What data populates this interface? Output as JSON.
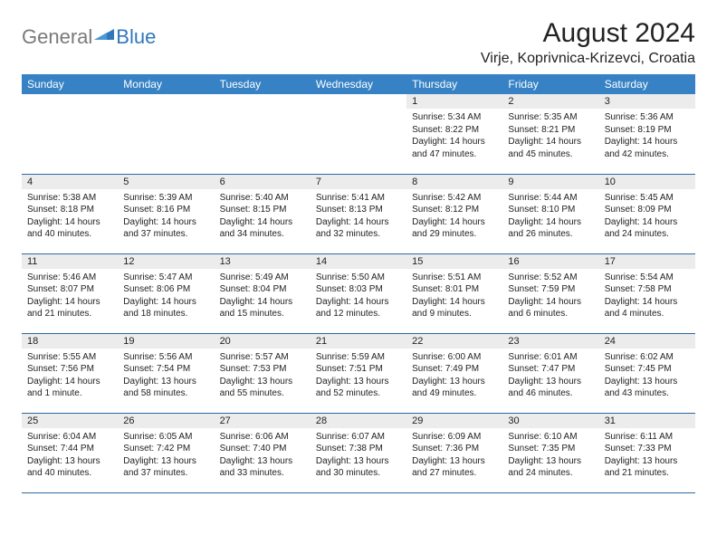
{
  "logo": {
    "general": "General",
    "blue": "Blue",
    "mark_color": "#2f78bd"
  },
  "title": "August 2024",
  "location": "Virje, Koprivnica-Krizevci, Croatia",
  "colors": {
    "header_bg": "#3682c4",
    "header_text": "#ffffff",
    "daynum_bg": "#ececec",
    "divider": "#2b6aa3",
    "text": "#222222"
  },
  "day_headers": [
    "Sunday",
    "Monday",
    "Tuesday",
    "Wednesday",
    "Thursday",
    "Friday",
    "Saturday"
  ],
  "weeks": [
    [
      {
        "n": "",
        "sunrise": "",
        "sunset": "",
        "daylight": ""
      },
      {
        "n": "",
        "sunrise": "",
        "sunset": "",
        "daylight": ""
      },
      {
        "n": "",
        "sunrise": "",
        "sunset": "",
        "daylight": ""
      },
      {
        "n": "",
        "sunrise": "",
        "sunset": "",
        "daylight": ""
      },
      {
        "n": "1",
        "sunrise": "Sunrise: 5:34 AM",
        "sunset": "Sunset: 8:22 PM",
        "daylight": "Daylight: 14 hours and 47 minutes."
      },
      {
        "n": "2",
        "sunrise": "Sunrise: 5:35 AM",
        "sunset": "Sunset: 8:21 PM",
        "daylight": "Daylight: 14 hours and 45 minutes."
      },
      {
        "n": "3",
        "sunrise": "Sunrise: 5:36 AM",
        "sunset": "Sunset: 8:19 PM",
        "daylight": "Daylight: 14 hours and 42 minutes."
      }
    ],
    [
      {
        "n": "4",
        "sunrise": "Sunrise: 5:38 AM",
        "sunset": "Sunset: 8:18 PM",
        "daylight": "Daylight: 14 hours and 40 minutes."
      },
      {
        "n": "5",
        "sunrise": "Sunrise: 5:39 AM",
        "sunset": "Sunset: 8:16 PM",
        "daylight": "Daylight: 14 hours and 37 minutes."
      },
      {
        "n": "6",
        "sunrise": "Sunrise: 5:40 AM",
        "sunset": "Sunset: 8:15 PM",
        "daylight": "Daylight: 14 hours and 34 minutes."
      },
      {
        "n": "7",
        "sunrise": "Sunrise: 5:41 AM",
        "sunset": "Sunset: 8:13 PM",
        "daylight": "Daylight: 14 hours and 32 minutes."
      },
      {
        "n": "8",
        "sunrise": "Sunrise: 5:42 AM",
        "sunset": "Sunset: 8:12 PM",
        "daylight": "Daylight: 14 hours and 29 minutes."
      },
      {
        "n": "9",
        "sunrise": "Sunrise: 5:44 AM",
        "sunset": "Sunset: 8:10 PM",
        "daylight": "Daylight: 14 hours and 26 minutes."
      },
      {
        "n": "10",
        "sunrise": "Sunrise: 5:45 AM",
        "sunset": "Sunset: 8:09 PM",
        "daylight": "Daylight: 14 hours and 24 minutes."
      }
    ],
    [
      {
        "n": "11",
        "sunrise": "Sunrise: 5:46 AM",
        "sunset": "Sunset: 8:07 PM",
        "daylight": "Daylight: 14 hours and 21 minutes."
      },
      {
        "n": "12",
        "sunrise": "Sunrise: 5:47 AM",
        "sunset": "Sunset: 8:06 PM",
        "daylight": "Daylight: 14 hours and 18 minutes."
      },
      {
        "n": "13",
        "sunrise": "Sunrise: 5:49 AM",
        "sunset": "Sunset: 8:04 PM",
        "daylight": "Daylight: 14 hours and 15 minutes."
      },
      {
        "n": "14",
        "sunrise": "Sunrise: 5:50 AM",
        "sunset": "Sunset: 8:03 PM",
        "daylight": "Daylight: 14 hours and 12 minutes."
      },
      {
        "n": "15",
        "sunrise": "Sunrise: 5:51 AM",
        "sunset": "Sunset: 8:01 PM",
        "daylight": "Daylight: 14 hours and 9 minutes."
      },
      {
        "n": "16",
        "sunrise": "Sunrise: 5:52 AM",
        "sunset": "Sunset: 7:59 PM",
        "daylight": "Daylight: 14 hours and 6 minutes."
      },
      {
        "n": "17",
        "sunrise": "Sunrise: 5:54 AM",
        "sunset": "Sunset: 7:58 PM",
        "daylight": "Daylight: 14 hours and 4 minutes."
      }
    ],
    [
      {
        "n": "18",
        "sunrise": "Sunrise: 5:55 AM",
        "sunset": "Sunset: 7:56 PM",
        "daylight": "Daylight: 14 hours and 1 minute."
      },
      {
        "n": "19",
        "sunrise": "Sunrise: 5:56 AM",
        "sunset": "Sunset: 7:54 PM",
        "daylight": "Daylight: 13 hours and 58 minutes."
      },
      {
        "n": "20",
        "sunrise": "Sunrise: 5:57 AM",
        "sunset": "Sunset: 7:53 PM",
        "daylight": "Daylight: 13 hours and 55 minutes."
      },
      {
        "n": "21",
        "sunrise": "Sunrise: 5:59 AM",
        "sunset": "Sunset: 7:51 PM",
        "daylight": "Daylight: 13 hours and 52 minutes."
      },
      {
        "n": "22",
        "sunrise": "Sunrise: 6:00 AM",
        "sunset": "Sunset: 7:49 PM",
        "daylight": "Daylight: 13 hours and 49 minutes."
      },
      {
        "n": "23",
        "sunrise": "Sunrise: 6:01 AM",
        "sunset": "Sunset: 7:47 PM",
        "daylight": "Daylight: 13 hours and 46 minutes."
      },
      {
        "n": "24",
        "sunrise": "Sunrise: 6:02 AM",
        "sunset": "Sunset: 7:45 PM",
        "daylight": "Daylight: 13 hours and 43 minutes."
      }
    ],
    [
      {
        "n": "25",
        "sunrise": "Sunrise: 6:04 AM",
        "sunset": "Sunset: 7:44 PM",
        "daylight": "Daylight: 13 hours and 40 minutes."
      },
      {
        "n": "26",
        "sunrise": "Sunrise: 6:05 AM",
        "sunset": "Sunset: 7:42 PM",
        "daylight": "Daylight: 13 hours and 37 minutes."
      },
      {
        "n": "27",
        "sunrise": "Sunrise: 6:06 AM",
        "sunset": "Sunset: 7:40 PM",
        "daylight": "Daylight: 13 hours and 33 minutes."
      },
      {
        "n": "28",
        "sunrise": "Sunrise: 6:07 AM",
        "sunset": "Sunset: 7:38 PM",
        "daylight": "Daylight: 13 hours and 30 minutes."
      },
      {
        "n": "29",
        "sunrise": "Sunrise: 6:09 AM",
        "sunset": "Sunset: 7:36 PM",
        "daylight": "Daylight: 13 hours and 27 minutes."
      },
      {
        "n": "30",
        "sunrise": "Sunrise: 6:10 AM",
        "sunset": "Sunset: 7:35 PM",
        "daylight": "Daylight: 13 hours and 24 minutes."
      },
      {
        "n": "31",
        "sunrise": "Sunrise: 6:11 AM",
        "sunset": "Sunset: 7:33 PM",
        "daylight": "Daylight: 13 hours and 21 minutes."
      }
    ]
  ]
}
